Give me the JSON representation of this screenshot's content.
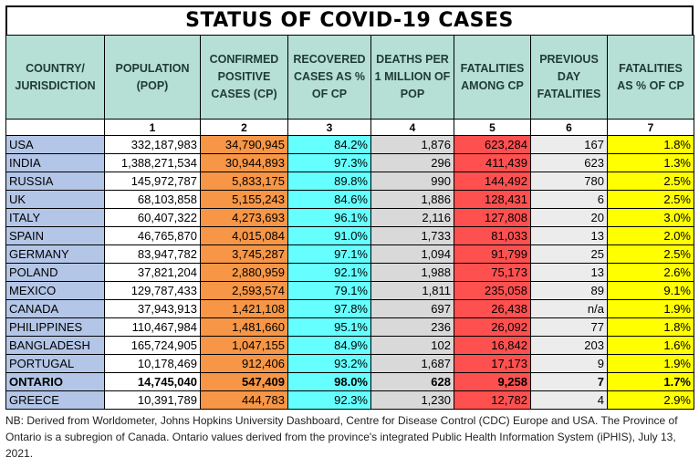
{
  "title": "STATUS OF COVID-19 CASES",
  "headers": [
    "COUNTRY/ JURISDICTION",
    "POPULATION (POP)",
    "CONFIRMED POSITIVE CASES (CP)",
    "RECOVERED CASES AS % OF CP",
    "DEATHS PER 1 MILLION OF POP",
    "FATALITIES AMONG CP",
    "PREVIOUS DAY FATALITIES",
    "FATALITIES AS % OF CP"
  ],
  "column_numbers": [
    "",
    "1",
    "2",
    "3",
    "4",
    "5",
    "6",
    "7"
  ],
  "rows": [
    [
      "USA",
      "332,187,983",
      "34,790,945",
      "84.2%",
      "1,876",
      "623,284",
      "167",
      "1.8%"
    ],
    [
      "INDIA",
      "1,388,271,534",
      "30,944,893",
      "97.3%",
      "296",
      "411,439",
      "623",
      "1.3%"
    ],
    [
      "RUSSIA",
      "145,972,787",
      "5,833,175",
      "89.8%",
      "990",
      "144,492",
      "780",
      "2.5%"
    ],
    [
      "UK",
      "68,103,858",
      "5,155,243",
      "84.6%",
      "1,886",
      "128,431",
      "6",
      "2.5%"
    ],
    [
      "ITALY",
      "60,407,322",
      "4,273,693",
      "96.1%",
      "2,116",
      "127,808",
      "20",
      "3.0%"
    ],
    [
      "SPAIN",
      "46,765,870",
      "4,015,084",
      "91.0%",
      "1,733",
      "81,033",
      "13",
      "2.0%"
    ],
    [
      "GERMANY",
      "83,947,782",
      "3,745,287",
      "97.1%",
      "1,094",
      "91,799",
      "25",
      "2.5%"
    ],
    [
      "POLAND",
      "37,821,204",
      "2,880,959",
      "92.1%",
      "1,988",
      "75,173",
      "13",
      "2.6%"
    ],
    [
      "MEXICO",
      "129,787,433",
      "2,593,574",
      "79.1%",
      "1,811",
      "235,058",
      "89",
      "9.1%"
    ],
    [
      "CANADA",
      "37,943,913",
      "1,421,108",
      "97.8%",
      "697",
      "26,438",
      "n/a",
      "1.9%"
    ],
    [
      "PHILIPPINES",
      "110,467,984",
      "1,481,660",
      "95.1%",
      "236",
      "26,092",
      "77",
      "1.8%"
    ],
    [
      "BANGLADESH",
      "165,724,905",
      "1,047,155",
      "84.9%",
      "102",
      "16,842",
      "203",
      "1.6%"
    ],
    [
      "PORTUGAL",
      "10,178,469",
      "912,406",
      "93.2%",
      "1,687",
      "17,173",
      "9",
      "1.9%"
    ],
    [
      "ONTARIO",
      "14,745,040",
      "547,409",
      "98.0%",
      "628",
      "9,258",
      "7",
      "1.7%"
    ],
    [
      "GREECE",
      "10,391,789",
      "444,783",
      "92.3%",
      "1,230",
      "12,782",
      "4",
      "2.9%"
    ]
  ],
  "note": "NB: Derived from Worldometer, Johns Hopkins University Dashboard, Centre for Disease Control (CDC) Europe and USA. The Province of Ontario is a subregion of Canada. Ontario values derived from the province's integrated Public Health Information System (iPHIS), July 13, 2021."
}
